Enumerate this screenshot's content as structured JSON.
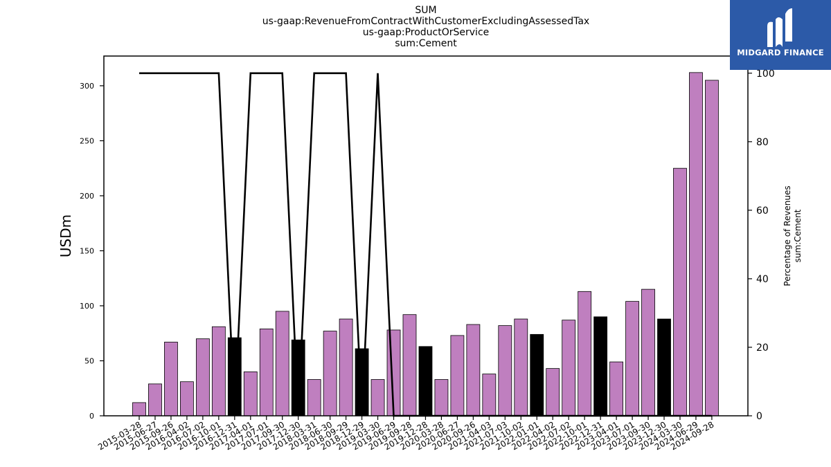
{
  "chart_data": {
    "type": "bar",
    "title_lines": [
      "SUM",
      "us-gaap:RevenueFromContractWithCustomerExcludingAssessedTax",
      "us-gaap:ProductOrService",
      "sum:Cement"
    ],
    "ylabel": "USDm",
    "y2label_lines": [
      "Percentage of Revenues",
      "sum:Cement"
    ],
    "ylim": [
      0,
      327
    ],
    "y2lim": [
      0,
      105
    ],
    "yticks": [
      0,
      50,
      100,
      150,
      200,
      250,
      300
    ],
    "y2ticks": [
      0,
      20,
      40,
      60,
      80,
      100
    ],
    "categories": [
      "2015-03-28",
      "2015-06-27",
      "2015-09-26",
      "2016-04-02",
      "2016-07-02",
      "2016-10-01",
      "2016-12-31",
      "2017-04-01",
      "2017-07-01",
      "2017-09-30",
      "2017-12-30",
      "2018-03-31",
      "2018-06-30",
      "2018-09-29",
      "2018-12-29",
      "2019-03-30",
      "2019-06-29",
      "2019-09-28",
      "2019-12-28",
      "2020-03-28",
      "2020-06-27",
      "2020-09-26",
      "2021-04-03",
      "2021-07-03",
      "2021-10-02",
      "2022-01-01",
      "2022-04-02",
      "2022-07-02",
      "2022-10-01",
      "2022-12-31",
      "2023-04-01",
      "2023-07-01",
      "2023-09-30",
      "2023-12-30",
      "2024-03-30",
      "2024-06-29",
      "2024-09-28"
    ],
    "series": [
      {
        "values": [
          12,
          29,
          67,
          31,
          70,
          81,
          71,
          40,
          79,
          95,
          69,
          33,
          77,
          88,
          61,
          33,
          78,
          92,
          63,
          33,
          73,
          83,
          38,
          82,
          88,
          74,
          43,
          87,
          113,
          90,
          49,
          104,
          115,
          88,
          225,
          312,
          305
        ]
      },
      {
        "axis": "right",
        "type": "line",
        "values": [
          100,
          100,
          100,
          100,
          100,
          100,
          0,
          100,
          100,
          100,
          0,
          100,
          100,
          100,
          0,
          100,
          0,
          0,
          0,
          0,
          0,
          0,
          0,
          0,
          0,
          0,
          0,
          0,
          0,
          0,
          0,
          0,
          0,
          0,
          0,
          0,
          0
        ]
      }
    ],
    "highlighted_bars": [
      6,
      10,
      14,
      18,
      25,
      29,
      33
    ],
    "colors": {
      "bar": "#bf7fbf",
      "bar_highlight": "#000000",
      "line": "#000000",
      "logo_bg": "#2c5aa8"
    },
    "grid": false,
    "legend": "none"
  },
  "logo": {
    "text": "MIDGARD FINANCE",
    "icon": "midgard-logo-icon"
  }
}
